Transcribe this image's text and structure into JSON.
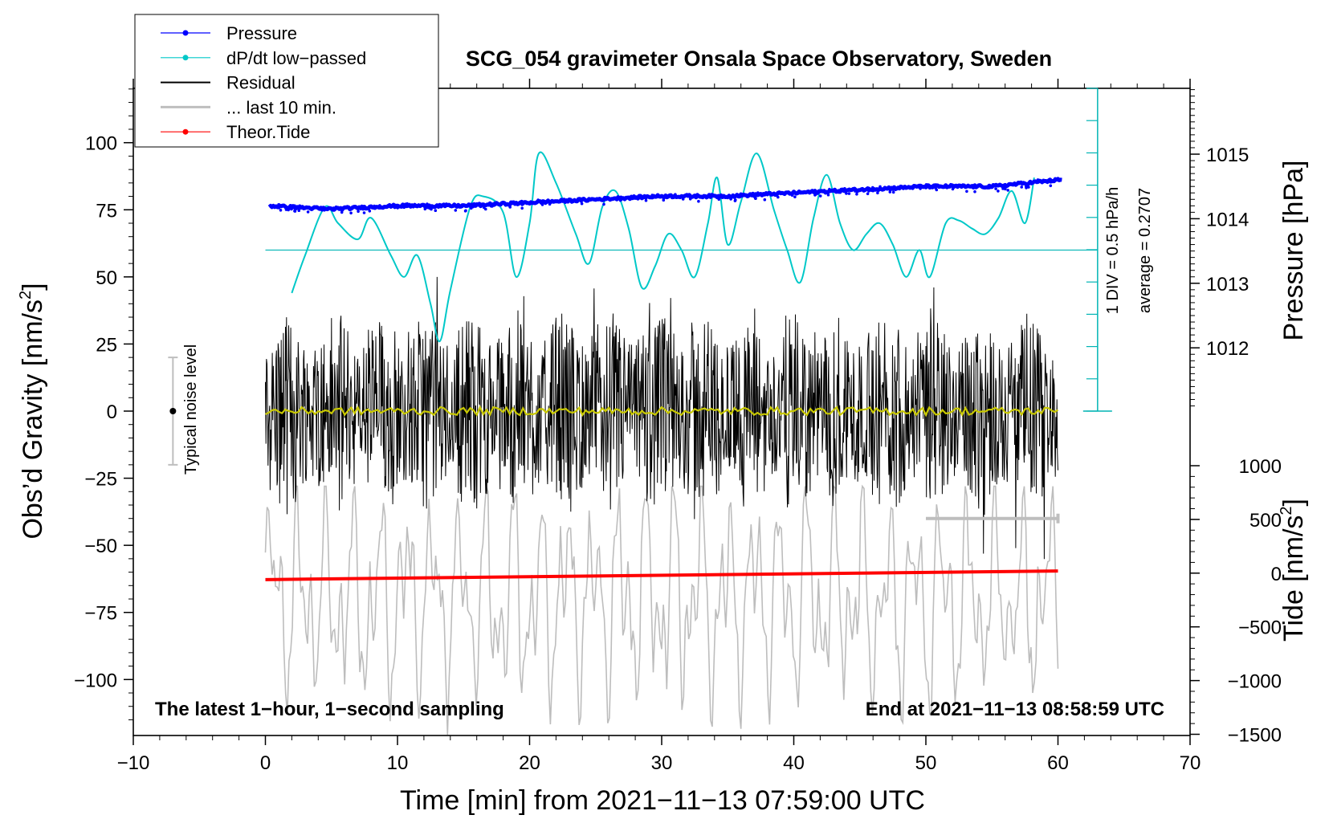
{
  "chart_data": {
    "type": "line",
    "title": "SCG_054 gravimeter Onsala Space Observatory, Sweden",
    "xlabel": "Time [min] from 2021−11−13 07:59:00 UTC",
    "ylabel_left": "Obs’d Gravity [nm/s",
    "ylabel_left_sup": "2",
    "ylabel_left_end": "]",
    "ylabel_right_pressure": "Pressure [hPa]",
    "ylabel_right_tide": "Tide [nm/s",
    "ylabel_right_tide_sup": "2",
    "ylabel_right_tide_end": "]",
    "xlim": [
      -10,
      70
    ],
    "ylim_left": [
      -120,
      120
    ],
    "x_ticks": [
      {
        "v": -10,
        "label": "−10"
      },
      {
        "v": 0,
        "label": "0"
      },
      {
        "v": 10,
        "label": "10"
      },
      {
        "v": 20,
        "label": "20"
      },
      {
        "v": 30,
        "label": "30"
      },
      {
        "v": 40,
        "label": "40"
      },
      {
        "v": 50,
        "label": "50"
      },
      {
        "v": 60,
        "label": "60"
      },
      {
        "v": 70,
        "label": "70"
      }
    ],
    "y_ticks_left": [
      {
        "v": 100,
        "label": "100"
      },
      {
        "v": 75,
        "label": "75"
      },
      {
        "v": 50,
        "label": "50"
      },
      {
        "v": 25,
        "label": "25"
      },
      {
        "v": 0,
        "label": "0"
      },
      {
        "v": -25,
        "label": "−25"
      },
      {
        "v": -50,
        "label": "−50"
      },
      {
        "v": -75,
        "label": "−75"
      },
      {
        "v": -100,
        "label": "−100"
      }
    ],
    "pressure_axis": {
      "range": [
        1011,
        1016
      ],
      "ticks": [
        {
          "v": 1015,
          "label": "1015"
        },
        {
          "v": 1014,
          "label": "1014"
        },
        {
          "v": 1013,
          "label": "1013"
        },
        {
          "v": 1012,
          "label": "1012"
        }
      ]
    },
    "tide_axis": {
      "range": [
        -1500,
        1000
      ],
      "ticks": [
        {
          "v": 1000,
          "label": "1000"
        },
        {
          "v": 500,
          "label": "500"
        },
        {
          "v": 0,
          "label": "0"
        },
        {
          "v": -500,
          "label": "−500"
        },
        {
          "v": -1000,
          "label": "−1000"
        },
        {
          "v": -1500,
          "label": "−1500"
        }
      ]
    },
    "legend": {
      "placement": "top-left",
      "entries": [
        {
          "label": "Pressure",
          "color": "#0000ff",
          "marker": true
        },
        {
          "label": "dP/dt low−passed",
          "color": "#00c8c8",
          "marker": true
        },
        {
          "label": "Residual",
          "color": "#000000",
          "marker": false
        },
        {
          "label": "... last 10 min.",
          "color": "#bebebe",
          "marker": false
        },
        {
          "label": "Theor.Tide",
          "color": "#ff0000",
          "marker": true
        }
      ]
    },
    "annotations": {
      "div": "1 DIV = 0.5 hPa/h",
      "average": "average = 0.2707",
      "noise": "Typical noise level",
      "bottom_left": "The latest 1−hour, 1−second sampling",
      "bottom_right": "End at 2021−11−13 08:58:59 UTC"
    },
    "series": [
      {
        "name": "Pressure",
        "unit": "hPa",
        "x": [
          0,
          5,
          10,
          15,
          20,
          25,
          30,
          35,
          40,
          45,
          50,
          55,
          60
        ],
        "values": [
          1014.2,
          1014.15,
          1014.2,
          1014.2,
          1014.25,
          1014.3,
          1014.35,
          1014.35,
          1014.4,
          1014.45,
          1014.5,
          1014.5,
          1014.6
        ]
      },
      {
        "name": "dP/dt low-passed",
        "unit": "gravity-axis position",
        "x": [
          2,
          3,
          4.5,
          5.5,
          7,
          8,
          9.5,
          10.5,
          11.5,
          12.5,
          13.2,
          14,
          15.5,
          16.5,
          18,
          19,
          20,
          20.7,
          22,
          23.5,
          24.5,
          25.5,
          26.5,
          27.5,
          28.5,
          29.5,
          30.5,
          31.5,
          32.5,
          33.5,
          34.2,
          35,
          36,
          37.2,
          38.5,
          39.5,
          40.5,
          41.5,
          42.5,
          43.5,
          44.5,
          45.5,
          46.5,
          47.5,
          48.5,
          49.5,
          50.3,
          51.5,
          52.5,
          53.5,
          54.5,
          55.5,
          56.5,
          57.5,
          58.2
        ],
        "values": [
          44,
          58,
          76,
          70,
          64,
          72,
          58,
          50,
          58,
          40,
          26,
          45,
          76,
          80,
          74,
          50,
          70,
          96,
          85,
          66,
          55,
          76,
          82,
          68,
          46,
          54,
          66,
          60,
          50,
          70,
          87,
          62,
          78,
          96,
          75,
          60,
          48,
          72,
          88,
          70,
          60,
          66,
          70,
          62,
          50,
          60,
          50,
          70,
          71,
          68,
          66,
          72,
          82,
          70,
          87
        ]
      },
      {
        "name": "Theor.Tide",
        "unit": "nm/s^2",
        "x": [
          0,
          60
        ],
        "values": [
          -60,
          20
        ]
      }
    ],
    "residual_band": {
      "amplitude_nm_s2": 25,
      "spikes_nm_s2": [
        45,
        -50
      ]
    },
    "noise_bar": {
      "x": -7,
      "center": 0,
      "range": [
        -20,
        20
      ]
    },
    "pressure_average_level": 60,
    "ten_min_bracket": {
      "x": [
        50,
        60
      ],
      "y": -40
    }
  }
}
